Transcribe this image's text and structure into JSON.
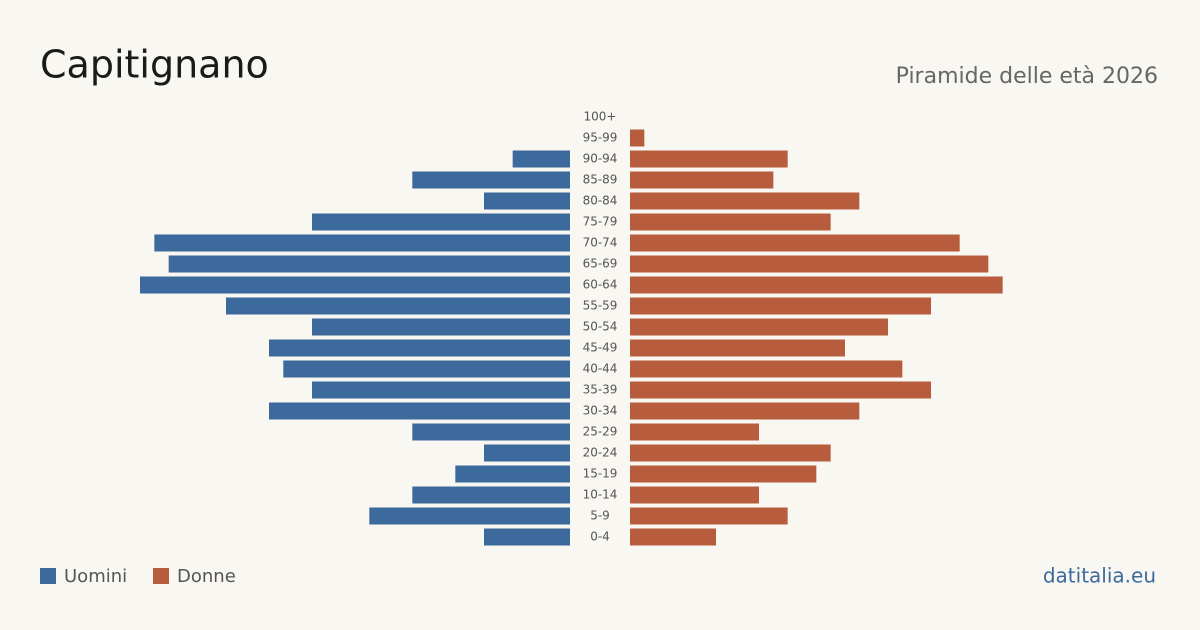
{
  "chart_data": {
    "type": "pyramid",
    "title": "Capitignano",
    "subtitle": "Piramide delle età 2026",
    "categories": [
      "100+",
      "95-99",
      "90-94",
      "85-89",
      "80-84",
      "75-79",
      "70-74",
      "65-69",
      "60-64",
      "55-59",
      "50-54",
      "45-49",
      "40-44",
      "35-39",
      "30-34",
      "25-29",
      "20-24",
      "15-19",
      "10-14",
      "5-9",
      "0-4"
    ],
    "series": [
      {
        "name": "Uomini",
        "color": "#3d6a9c",
        "values": [
          0,
          0,
          4,
          11,
          6,
          18,
          29,
          28,
          30,
          24,
          18,
          21,
          20,
          18,
          21,
          11,
          6,
          8,
          11,
          14,
          6
        ]
      },
      {
        "name": "Donne",
        "color": "#b75d3d",
        "values": [
          0,
          1,
          11,
          10,
          16,
          14,
          23,
          25,
          26,
          21,
          18,
          15,
          19,
          21,
          16,
          9,
          14,
          13,
          9,
          11,
          6
        ]
      }
    ]
  },
  "footer": "datitalia.eu"
}
